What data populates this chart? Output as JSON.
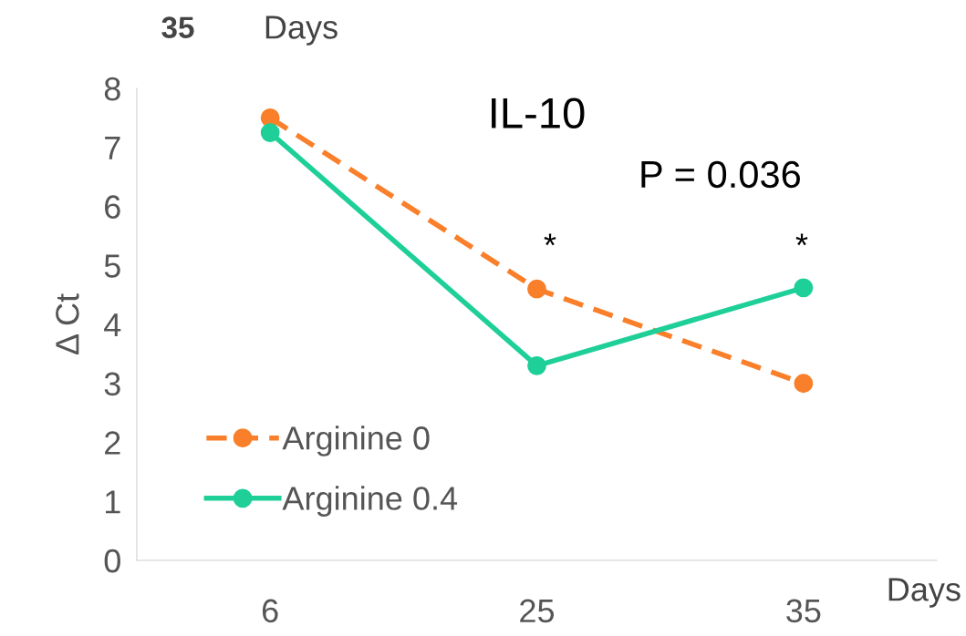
{
  "chart_data": {
    "type": "line",
    "title": "IL-10",
    "ylabel": "Δ Ct",
    "xlabel": "Days",
    "categories": [
      "6",
      "25",
      "35"
    ],
    "series": [
      {
        "name": "Arginine 0",
        "color": "#f97f2a",
        "values": [
          7.5,
          4.6,
          3.0
        ],
        "line_style": "dashed"
      },
      {
        "name": "Arginine 0.4",
        "color": "#1ecf98",
        "values": [
          7.25,
          3.3,
          4.62
        ],
        "line_style": "solid"
      }
    ],
    "ylim": [
      0,
      8
    ],
    "yticks": [
      0,
      1,
      2,
      3,
      4,
      5,
      6,
      7,
      8
    ],
    "marker": "circle",
    "grid": false,
    "legend": "bottom left",
    "annotations": [
      "*",
      "*",
      "P = 0.036",
      "35",
      "Days"
    ]
  }
}
